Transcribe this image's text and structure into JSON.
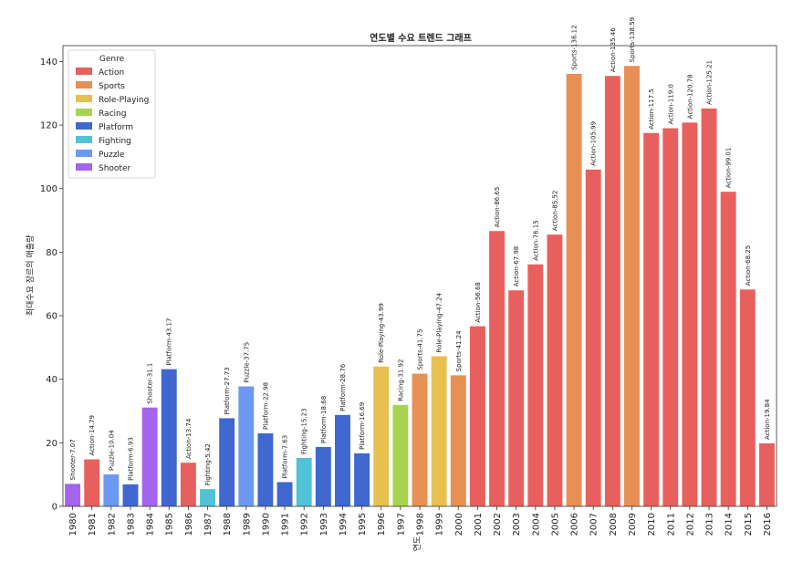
{
  "chart_data": {
    "type": "bar",
    "title": "연도별 수요 트렌드 그래프",
    "xlabel": "연도",
    "ylabel": "최대수요 장르의 매출량",
    "ylim": [
      0,
      145
    ],
    "yticks": [
      0,
      20,
      40,
      60,
      80,
      100,
      120,
      140
    ],
    "grid": false,
    "legend": {
      "title": "Genre",
      "placement": "top-left",
      "entries": [
        {
          "name": "Action",
          "color": "#e8605d"
        },
        {
          "name": "Sports",
          "color": "#e88f54"
        },
        {
          "name": "Role-Playing",
          "color": "#e7c04f"
        },
        {
          "name": "Racing",
          "color": "#a8d352"
        },
        {
          "name": "Platform",
          "color": "#3f67cf"
        },
        {
          "name": "Fighting",
          "color": "#51c3d6"
        },
        {
          "name": "Puzzle",
          "color": "#6c98ef"
        },
        {
          "name": "Shooter",
          "color": "#a464ee"
        }
      ]
    },
    "bars": [
      {
        "year": "1980",
        "genre": "Shooter",
        "value": 7.07,
        "label": "Shooter-7.07"
      },
      {
        "year": "1981",
        "genre": "Action",
        "value": 14.79,
        "label": "Action-14.79"
      },
      {
        "year": "1982",
        "genre": "Puzzle",
        "value": 10.04,
        "label": "Puzzle-10.04"
      },
      {
        "year": "1983",
        "genre": "Platform",
        "value": 6.93,
        "label": "Platform-6.93"
      },
      {
        "year": "1984",
        "genre": "Shooter",
        "value": 31.1,
        "label": "Shooter-31.1"
      },
      {
        "year": "1985",
        "genre": "Platform",
        "value": 43.17,
        "label": "Platform-43.17"
      },
      {
        "year": "1986",
        "genre": "Action",
        "value": 13.74,
        "label": "Action-13.74"
      },
      {
        "year": "1987",
        "genre": "Fighting",
        "value": 5.42,
        "label": "Fighting-5.42"
      },
      {
        "year": "1988",
        "genre": "Platform",
        "value": 27.73,
        "label": "Platform-27.73"
      },
      {
        "year": "1989",
        "genre": "Puzzle",
        "value": 37.75,
        "label": "Puzzle-37.75"
      },
      {
        "year": "1990",
        "genre": "Platform",
        "value": 22.98,
        "label": "Platform-22.98"
      },
      {
        "year": "1991",
        "genre": "Platform",
        "value": 7.63,
        "label": "Platform-7.63"
      },
      {
        "year": "1992",
        "genre": "Fighting",
        "value": 15.23,
        "label": "Fighting-15.23"
      },
      {
        "year": "1993",
        "genre": "Platform",
        "value": 18.68,
        "label": "Platform-18.68"
      },
      {
        "year": "1994",
        "genre": "Platform",
        "value": 28.76,
        "label": "Platform-28.76"
      },
      {
        "year": "1995",
        "genre": "Platform",
        "value": 16.69,
        "label": "Platform-16.69"
      },
      {
        "year": "1996",
        "genre": "Role-Playing",
        "value": 43.99,
        "label": "Role-Playing-43.99"
      },
      {
        "year": "1997",
        "genre": "Racing",
        "value": 31.92,
        "label": "Racing-31.92"
      },
      {
        "year": "1998",
        "genre": "Sports",
        "value": 41.75,
        "label": "Sports-41.75"
      },
      {
        "year": "1999",
        "genre": "Role-Playing",
        "value": 47.24,
        "label": "Role-Playing-47.24"
      },
      {
        "year": "2000",
        "genre": "Sports",
        "value": 41.24,
        "label": "Sports-41.24"
      },
      {
        "year": "2001",
        "genre": "Action",
        "value": 56.68,
        "label": "Action-56.68"
      },
      {
        "year": "2002",
        "genre": "Action",
        "value": 86.65,
        "label": "Action-86.65"
      },
      {
        "year": "2003",
        "genre": "Action",
        "value": 67.98,
        "label": "Action-67.98"
      },
      {
        "year": "2004",
        "genre": "Action",
        "value": 76.15,
        "label": "Action-76.15"
      },
      {
        "year": "2005",
        "genre": "Action",
        "value": 85.52,
        "label": "Action-85.52"
      },
      {
        "year": "2006",
        "genre": "Sports",
        "value": 136.12,
        "label": "Sports-136.12"
      },
      {
        "year": "2007",
        "genre": "Action",
        "value": 105.99,
        "label": "Action-105.99"
      },
      {
        "year": "2008",
        "genre": "Action",
        "value": 135.46,
        "label": "Action-135.46"
      },
      {
        "year": "2009",
        "genre": "Sports",
        "value": 138.59,
        "label": "Sports-138.59"
      },
      {
        "year": "2010",
        "genre": "Action",
        "value": 117.5,
        "label": "Action-117.5"
      },
      {
        "year": "2011",
        "genre": "Action",
        "value": 119.0,
        "label": "Action-119.0"
      },
      {
        "year": "2012",
        "genre": "Action",
        "value": 120.78,
        "label": "Action-120.78"
      },
      {
        "year": "2013",
        "genre": "Action",
        "value": 125.21,
        "label": "Action-125.21"
      },
      {
        "year": "2014",
        "genre": "Action",
        "value": 99.01,
        "label": "Action-99.01"
      },
      {
        "year": "2015",
        "genre": "Action",
        "value": 68.25,
        "label": "Action-68.25"
      },
      {
        "year": "2016",
        "genre": "Action",
        "value": 19.84,
        "label": "Action-19.84"
      }
    ]
  }
}
